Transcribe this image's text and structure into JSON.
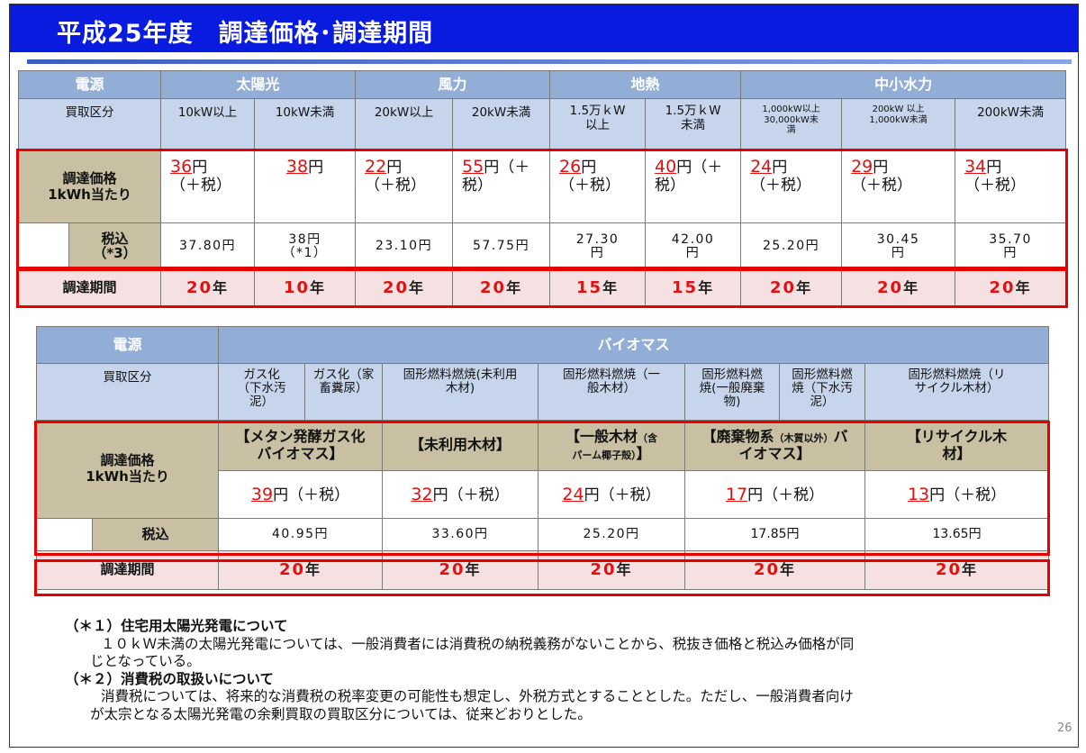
{
  "title": "平成25年度　調達価格･調達期間",
  "solar_table": {
    "header": {
      "source_label": "電源",
      "groups": [
        "太陽光",
        "風力",
        "地熱",
        "中小水力"
      ]
    },
    "subheader": {
      "label": "買取区分",
      "cols": [
        "10kW以上",
        "10kW未満",
        "20kW以上",
        "20kW未満",
        "1.5万ｋW\n以上",
        "1.5万ｋW\n未満",
        "1,000kW以上\n30,000kW未\n満",
        "200kW 以上\n1,000kW未満",
        "200kW未満"
      ]
    },
    "price_label": "調達価格\n1kWh当たり",
    "prices": [
      {
        "num": "36",
        "rest": "円\n（＋税）"
      },
      {
        "num": "38",
        "rest": "円"
      },
      {
        "num": "22",
        "rest": "円\n（＋税）"
      },
      {
        "num": "55",
        "rest": "円（＋\n税）"
      },
      {
        "num": "26",
        "rest": "円\n（＋税）"
      },
      {
        "num": "40",
        "rest": "円（＋\n税）"
      },
      {
        "num": "24",
        "rest": "円\n（＋税）"
      },
      {
        "num": "29",
        "rest": "円\n（＋税）"
      },
      {
        "num": "34",
        "rest": "円\n（＋税）"
      }
    ],
    "tax_label": "税込\n（*3）",
    "tax_included": [
      "37.80円",
      "38円\n（*1）",
      "23.10円",
      "57.75円",
      "27.30\n円",
      "42.00\n円",
      "25.20円",
      "30.45\n円",
      "35.70\n円"
    ],
    "period_label": "調達期間",
    "periods": [
      {
        "num": "20",
        "unit": "年"
      },
      {
        "num": "10",
        "unit": "年"
      },
      {
        "num": "20",
        "unit": "年"
      },
      {
        "num": "20",
        "unit": "年"
      },
      {
        "num": "15",
        "unit": "年"
      },
      {
        "num": "15",
        "unit": "年"
      },
      {
        "num": "20",
        "unit": "年"
      },
      {
        "num": "20",
        "unit": "年"
      },
      {
        "num": "20",
        "unit": "年"
      }
    ]
  },
  "biomass_table": {
    "header": {
      "source_label": "電源",
      "group": "バイオマス"
    },
    "subheader": {
      "label": "買取区分",
      "cols": [
        "ガス化\n（下水汚\n泥）",
        "ガス化（家\n畜糞尿）",
        "固形燃料燃焼(未利用\n木材)",
        "固形燃料燃焼（一\n般木材）",
        "固形燃料燃\n焼(一般廃棄\n物)",
        "固形燃料燃\n焼（下水汚\n泥）",
        "固形燃料燃焼（リ\nサイクル木材）"
      ]
    },
    "price_label": "調達価格\n1kWh当たり",
    "categories": [
      {
        "main": "【メタン発酵ガス化\nバイオマス】",
        "small": ""
      },
      {
        "main": "【未利用木材】",
        "small": ""
      },
      {
        "main": "【一般木材",
        "small": "（含\nパーム椰子殻）",
        "end": "】"
      },
      {
        "main": "【廃棄物系",
        "small": "（木質以外）",
        "end": "バ\nイオマス】"
      },
      {
        "main": "【リサイクル木\n材】",
        "small": ""
      }
    ],
    "prices": [
      {
        "num": "39",
        "rest": "円（＋税）"
      },
      {
        "num": "32",
        "rest": "円（＋税）"
      },
      {
        "num": "24",
        "rest": "円（＋税）"
      },
      {
        "num": "17",
        "rest": "円（＋税）"
      },
      {
        "num": "13",
        "rest": "円（＋税）"
      }
    ],
    "tax_label": "税込",
    "tax_included": [
      "40.95円",
      "33.60円",
      "25.20円",
      "17.85円",
      "13.65円"
    ],
    "period_label": "調達期間",
    "periods": [
      {
        "num": "20",
        "unit": "年"
      },
      {
        "num": "20",
        "unit": "年"
      },
      {
        "num": "20",
        "unit": "年"
      },
      {
        "num": "20",
        "unit": "年"
      },
      {
        "num": "20",
        "unit": "年"
      }
    ]
  },
  "notes": [
    {
      "head": "（＊１）住宅用太陽光発電について",
      "body": "１０ｋＷ未満の太陽光発電については、一般消費者には消費税の納税義務がないことから、税抜き価格と税込み価格が同",
      "cont": "じとなっている。"
    },
    {
      "head": "（＊２）消費税の取扱いについて",
      "body": "消費税については、将来的な消費税の税率変更の可能性も想定し、外税方式とすることとした。ただし、一般消費者向け",
      "cont": "が太宗となる太陽光発電の余剰買取の買取区分については、従来どおりとした。"
    }
  ],
  "page_number": "26"
}
